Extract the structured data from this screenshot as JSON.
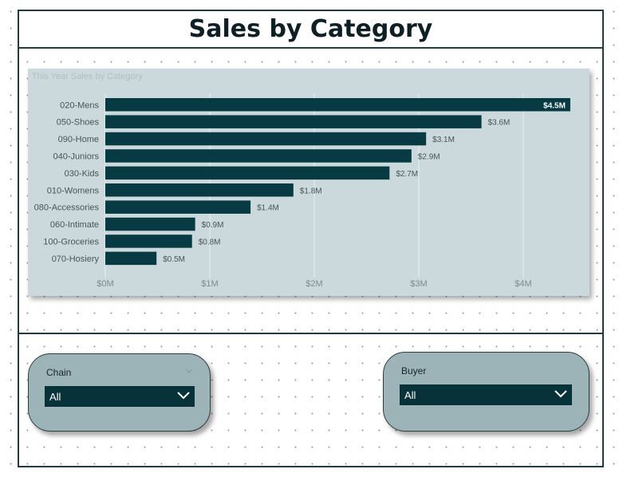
{
  "page": {
    "title": "Sales by Category"
  },
  "chart": {
    "title": "This Year Sales by Category",
    "bar_color": "#073a42",
    "chart_data": {
      "type": "bar",
      "orientation": "horizontal",
      "title": "This Year Sales by Category",
      "categories": [
        "020-Mens",
        "050-Shoes",
        "090-Home",
        "040-Juniors",
        "030-Kids",
        "010-Womens",
        "080-Accessories",
        "060-Intimate",
        "100-Groceries",
        "070-Hosiery"
      ],
      "values": [
        4.45,
        3.6,
        3.07,
        2.93,
        2.72,
        1.8,
        1.39,
        0.86,
        0.83,
        0.49
      ],
      "data_labels": [
        "$4.5M",
        "$3.6M",
        "$3.1M",
        "$2.9M",
        "$2.7M",
        "$1.8M",
        "$1.4M",
        "$0.9M",
        "$0.8M",
        "$0.5M"
      ],
      "x_ticks": [
        0,
        1,
        2,
        3,
        4
      ],
      "x_tick_labels": [
        "$0M",
        "$1M",
        "$2M",
        "$3M",
        "$4M"
      ],
      "xlim": [
        0,
        4.6
      ],
      "xlabel": "",
      "ylabel": "",
      "grid": true
    }
  },
  "slicers": {
    "chain": {
      "label": "Chain",
      "value": "All"
    },
    "buyer": {
      "label": "Buyer",
      "value": "All"
    }
  },
  "icons": {
    "dropdown": "chevron-down-icon"
  }
}
